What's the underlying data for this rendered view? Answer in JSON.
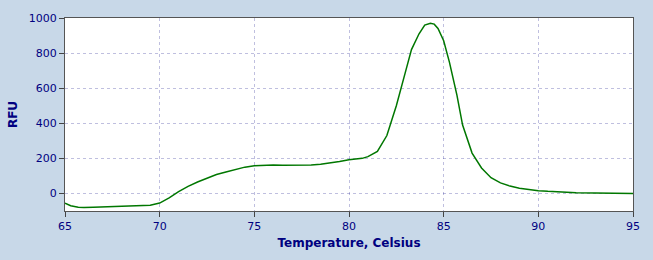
{
  "chart_data": {
    "type": "line",
    "xlabel": "Temperature, Celsius",
    "ylabel": "RFU",
    "x": [
      65.0,
      65.3,
      65.7,
      66.0,
      66.5,
      67.0,
      67.5,
      68.0,
      68.5,
      69.0,
      69.5,
      70.0,
      70.5,
      71.0,
      71.5,
      72.0,
      72.5,
      73.0,
      73.5,
      74.0,
      74.5,
      75.0,
      75.3,
      75.7,
      76.0,
      76.5,
      77.0,
      77.5,
      78.0,
      78.5,
      79.0,
      79.5,
      80.0,
      80.3,
      80.7,
      81.0,
      81.5,
      82.0,
      82.5,
      83.0,
      83.3,
      83.7,
      84.0,
      84.3,
      84.5,
      84.7,
      85.0,
      85.3,
      85.7,
      86.0,
      86.5,
      87.0,
      87.5,
      88.0,
      88.5,
      89.0,
      89.5,
      90.0,
      90.5,
      91.0,
      92.0,
      93.0,
      94.0,
      95.0
    ],
    "values": [
      -55,
      -70,
      -78,
      -80,
      -79,
      -77,
      -75,
      -73,
      -71,
      -69,
      -67,
      -55,
      -25,
      10,
      40,
      65,
      88,
      108,
      122,
      138,
      150,
      158,
      160,
      162,
      162,
      161,
      160,
      160,
      162,
      166,
      172,
      182,
      192,
      196,
      200,
      210,
      240,
      330,
      500,
      700,
      820,
      910,
      960,
      970,
      965,
      940,
      870,
      750,
      560,
      390,
      230,
      145,
      90,
      60,
      42,
      30,
      22,
      16,
      12,
      8,
      4,
      2,
      1,
      0
    ],
    "color": "#007700",
    "xlim": [
      65,
      95
    ],
    "ylim": [
      -100,
      1000
    ],
    "xticks": [
      65,
      70,
      75,
      80,
      85,
      90,
      95
    ],
    "yticks": [
      0,
      200,
      400,
      600,
      800,
      1000
    ],
    "grid": true
  }
}
